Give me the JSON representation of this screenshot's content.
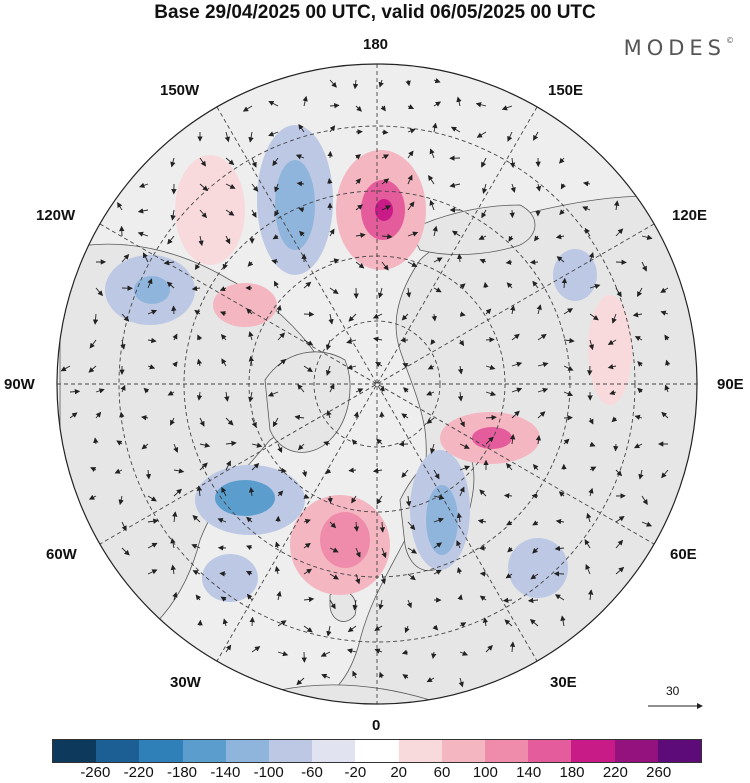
{
  "title": "Base 29/04/2025 00 UTC, valid 06/05/2025 00 UTC",
  "brand": "MODES",
  "brand_mark": "©",
  "longitude_labels": {
    "n180": "180",
    "w150": "150W",
    "e150": "150E",
    "w120": "120W",
    "e120": "120E",
    "w90": "90W",
    "e90": "90E",
    "w60": "60W",
    "e60": "60E",
    "w30": "30W",
    "e30": "30E",
    "s0": "0"
  },
  "reference_vector": "30",
  "colorbar": {
    "ticks": [
      "-260",
      "-220",
      "-180",
      "-140",
      "-100",
      "-60",
      "-20",
      "20",
      "60",
      "100",
      "140",
      "180",
      "220",
      "260"
    ],
    "colors": [
      "#0d3a5c",
      "#1b5f95",
      "#2f7fb8",
      "#5b9dcd",
      "#8fb5dc",
      "#bcc8e4",
      "#e2e3f0",
      "#ffffff",
      "#f8dadd",
      "#f4b6c1",
      "#ef8cab",
      "#e45c9b",
      "#c81b87",
      "#94127d",
      "#5e0b7a"
    ]
  },
  "colors": {
    "land": "#e9e9e9",
    "ocean": "#ffffff",
    "coast": "#555555",
    "grid": "#444444"
  }
}
